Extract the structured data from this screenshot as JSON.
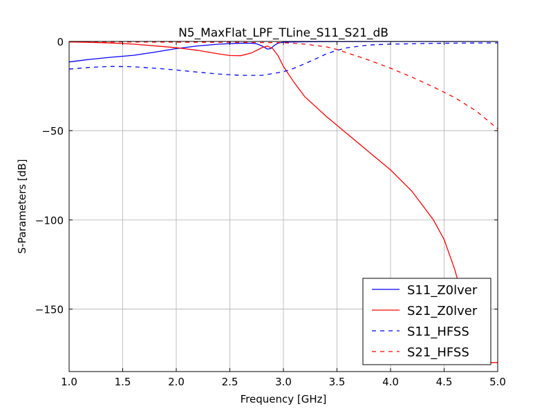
{
  "chart_data": {
    "type": "line",
    "title": "N5_MaxFlat_LPF_TLine_S11_S21_dB",
    "xlabel": "Frequency [GHz]",
    "ylabel": "S-Parameters [dB]",
    "xlim": [
      1.0,
      5.0
    ],
    "ylim": [
      -185,
      0
    ],
    "xticks": [
      1.0,
      1.5,
      2.0,
      2.5,
      3.0,
      3.5,
      4.0,
      4.5,
      5.0
    ],
    "xtick_labels": [
      "1.0",
      "1.5",
      "2.0",
      "2.5",
      "3.0",
      "3.5",
      "4.0",
      "4.5",
      "5.0"
    ],
    "yticks": [
      0,
      -50,
      -100,
      -150
    ],
    "ytick_labels": [
      "0",
      "−50",
      "−100",
      "−150"
    ],
    "grid": true,
    "legend_position": "lower-right",
    "series": [
      {
        "name": "S11_Z0lver",
        "color": "#0000ff",
        "dash": "solid",
        "x": [
          1.0,
          1.2,
          1.4,
          1.6,
          1.8,
          2.0,
          2.2,
          2.4,
          2.6,
          2.7,
          2.75,
          2.8,
          2.85,
          2.88,
          2.92,
          2.95,
          3.0,
          3.2,
          3.5,
          4.0,
          4.5,
          5.0
        ],
        "y": [
          -11.5,
          -10,
          -8.8,
          -7.8,
          -6,
          -4,
          -2.5,
          -1.5,
          -1.0,
          -1.0,
          -1.3,
          -2.5,
          -4.3,
          -4.0,
          -2.0,
          -1.0,
          -0.4,
          -0.2,
          -0.1,
          -0.05,
          -0.02,
          -0.01
        ]
      },
      {
        "name": "S21_Z0lver",
        "color": "#ff0000",
        "dash": "solid",
        "x": [
          1.0,
          1.2,
          1.4,
          1.6,
          1.8,
          2.0,
          2.2,
          2.4,
          2.5,
          2.6,
          2.7,
          2.8,
          2.85,
          2.9,
          2.95,
          3.0,
          3.1,
          3.2,
          3.4,
          3.6,
          3.8,
          4.0,
          4.2,
          4.4,
          4.5,
          4.6,
          4.7,
          4.8,
          4.9,
          5.0
        ],
        "y": [
          -0.3,
          -0.5,
          -0.9,
          -1.5,
          -2.5,
          -3.5,
          -5.0,
          -7.0,
          -7.9,
          -8.0,
          -6.5,
          -3.5,
          -2.6,
          -4.0,
          -8.0,
          -14.0,
          -23.0,
          -31.0,
          -42.0,
          -52.0,
          -62.0,
          -72.0,
          -84.0,
          -100.0,
          -111.0,
          -128.0,
          -150.0,
          -172.0,
          -180.0,
          -180.0
        ]
      },
      {
        "name": "S11_HFSS",
        "color": "#0000ff",
        "dash": "dashed",
        "x": [
          1.0,
          1.2,
          1.4,
          1.6,
          1.8,
          2.0,
          2.2,
          2.4,
          2.6,
          2.8,
          3.0,
          3.1,
          3.2,
          3.3,
          3.4,
          3.5,
          3.6,
          3.8,
          4.0,
          4.5,
          5.0
        ],
        "y": [
          -15.5,
          -14.5,
          -14.0,
          -14.2,
          -15.0,
          -16.0,
          -17.2,
          -18.3,
          -19.0,
          -19.0,
          -17.0,
          -15.0,
          -12.5,
          -9.8,
          -7.0,
          -5.0,
          -3.5,
          -2.0,
          -1.5,
          -1.0,
          -0.8
        ]
      },
      {
        "name": "S21_HFSS",
        "color": "#ff0000",
        "dash": "dashed",
        "x": [
          1.0,
          1.5,
          2.0,
          2.5,
          2.8,
          3.0,
          3.2,
          3.4,
          3.5,
          3.6,
          3.8,
          4.0,
          4.2,
          4.4,
          4.6,
          4.8,
          5.0
        ],
        "y": [
          -0.2,
          -0.3,
          -0.4,
          -0.5,
          -0.6,
          -0.7,
          -1.5,
          -3.0,
          -4.5,
          -6.5,
          -10.5,
          -15.0,
          -20.0,
          -25.5,
          -31.5,
          -39.0,
          -49.0
        ]
      }
    ]
  }
}
